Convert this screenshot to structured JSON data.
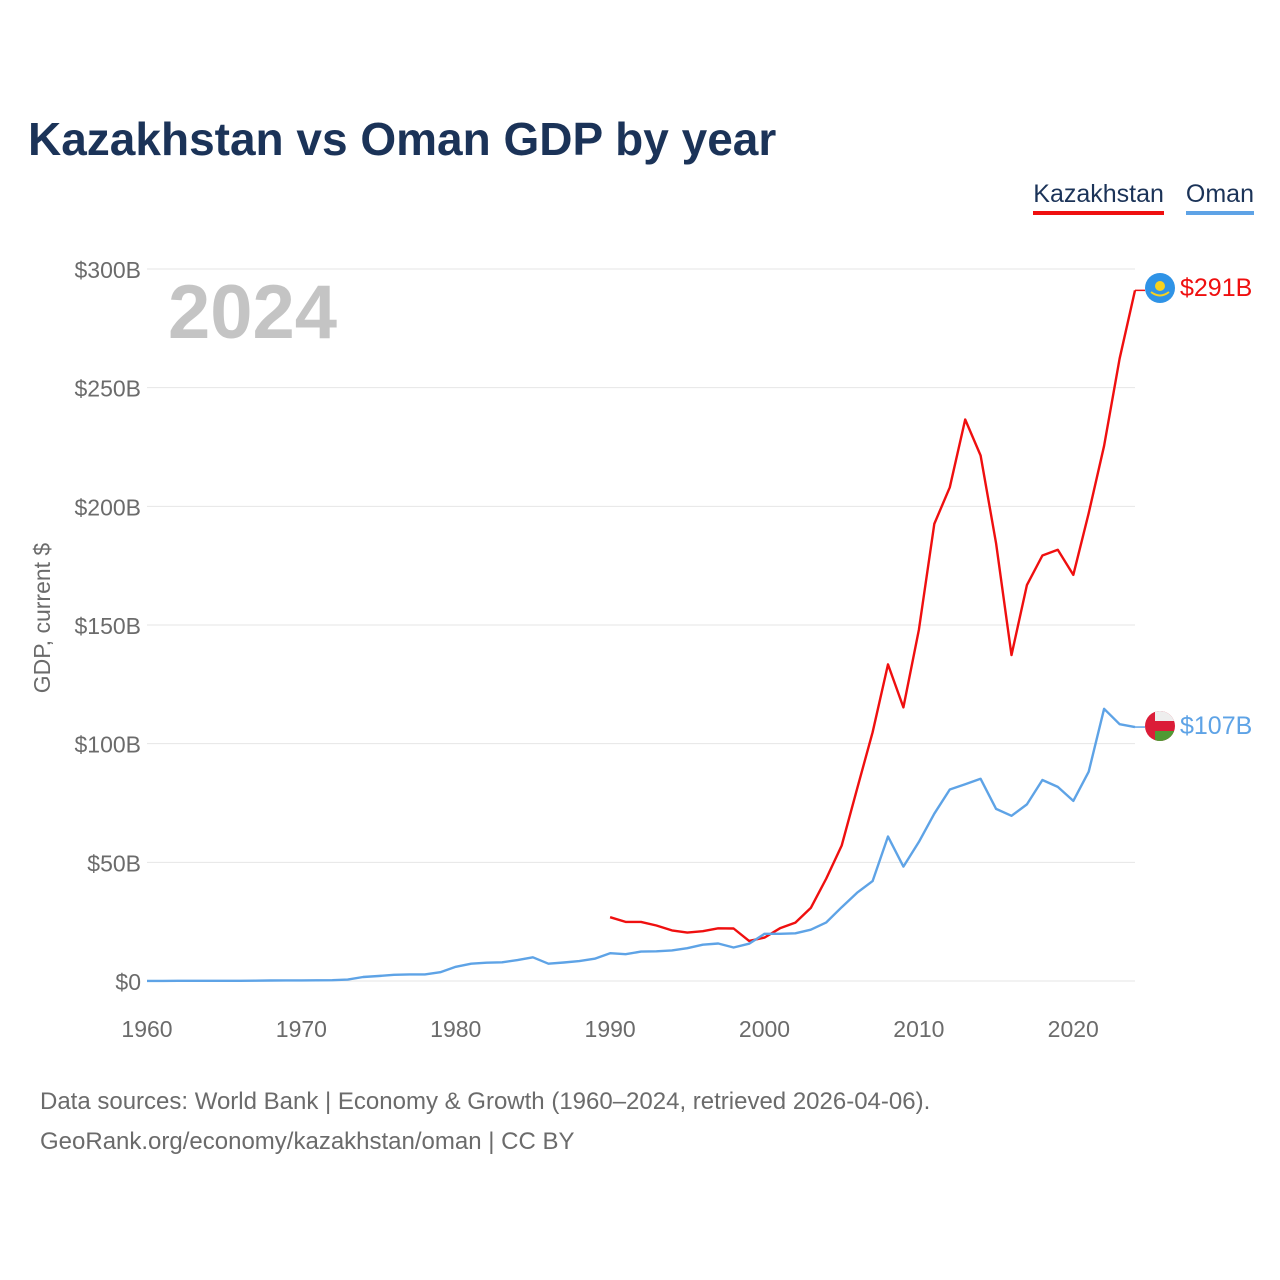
{
  "title": "Kazakhstan vs Oman GDP by year",
  "legend": [
    {
      "label": "Kazakhstan",
      "color": "#ef0f0f"
    },
    {
      "label": "Oman",
      "color": "#5ea3e6"
    }
  ],
  "year_watermark": "2024",
  "footer": {
    "line1": "Data sources: World Bank | Economy & Growth (1960–2024, retrieved 2026-04-06).",
    "line2": "GeoRank.org/economy/kazakhstan/oman | CC BY"
  },
  "chart_data": {
    "type": "line",
    "title": "Kazakhstan vs Oman GDP by year",
    "xlabel": "",
    "ylabel": "GDP, current $",
    "xlim": [
      1960,
      2024
    ],
    "ylim": [
      0,
      300
    ],
    "y_unit": "billions USD",
    "x_ticks": [
      1960,
      1970,
      1980,
      1990,
      2000,
      2010,
      2020
    ],
    "x_tick_labels": [
      "1960",
      "1970",
      "1980",
      "1990",
      "2000",
      "2010",
      "2020"
    ],
    "y_ticks": [
      0,
      50,
      100,
      150,
      200,
      250,
      300
    ],
    "y_tick_labels": [
      "$0",
      "$50B",
      "$100B",
      "$150B",
      "$200B",
      "$250B",
      "$300B"
    ],
    "grid": true,
    "legend_position": "top-right",
    "series": [
      {
        "name": "Kazakhstan",
        "color": "#ef0f0f",
        "end_label": "$291B",
        "x": [
          1990,
          1991,
          1992,
          1993,
          1994,
          1995,
          1996,
          1997,
          1998,
          1999,
          2000,
          2001,
          2002,
          2003,
          2004,
          2005,
          2006,
          2007,
          2008,
          2009,
          2010,
          2011,
          2012,
          2013,
          2014,
          2015,
          2016,
          2017,
          2018,
          2019,
          2020,
          2021,
          2022,
          2023,
          2024
        ],
        "values": [
          26.9,
          24.9,
          24.9,
          23.4,
          21.3,
          20.4,
          21.0,
          22.2,
          22.1,
          16.9,
          18.3,
          22.2,
          24.6,
          30.8,
          43.2,
          57.1,
          81.0,
          104.8,
          133.4,
          115.3,
          148.0,
          192.6,
          208.0,
          236.6,
          221.4,
          184.4,
          137.3,
          166.8,
          179.3,
          181.7,
          171.1,
          197.1,
          225.5,
          262.2,
          291.0
        ]
      },
      {
        "name": "Oman",
        "color": "#5ea3e6",
        "end_label": "$107B",
        "x": [
          1960,
          1961,
          1962,
          1963,
          1964,
          1965,
          1966,
          1967,
          1968,
          1969,
          1970,
          1971,
          1972,
          1973,
          1974,
          1975,
          1976,
          1977,
          1978,
          1979,
          1980,
          1981,
          1982,
          1983,
          1984,
          1985,
          1986,
          1987,
          1988,
          1989,
          1990,
          1991,
          1992,
          1993,
          1994,
          1995,
          1996,
          1997,
          1998,
          1999,
          2000,
          2001,
          2002,
          2003,
          2004,
          2005,
          2006,
          2007,
          2008,
          2009,
          2010,
          2011,
          2012,
          2013,
          2014,
          2015,
          2016,
          2017,
          2018,
          2019,
          2020,
          2021,
          2022,
          2023,
          2024
        ],
        "values": [
          0.05,
          0.06,
          0.07,
          0.08,
          0.08,
          0.09,
          0.1,
          0.11,
          0.2,
          0.25,
          0.26,
          0.3,
          0.35,
          0.6,
          1.7,
          2.1,
          2.6,
          2.8,
          2.8,
          3.7,
          6.0,
          7.3,
          7.7,
          7.9,
          8.8,
          10.0,
          7.3,
          7.8,
          8.4,
          9.4,
          11.7,
          11.3,
          12.4,
          12.5,
          12.9,
          13.8,
          15.3,
          15.8,
          14.1,
          15.7,
          19.9,
          19.9,
          20.1,
          21.6,
          24.7,
          31.1,
          37.2,
          42.1,
          60.9,
          48.2,
          58.6,
          70.5,
          80.7,
          82.9,
          85.2,
          72.5,
          69.6,
          74.4,
          84.7,
          81.8,
          75.9,
          88.2,
          114.7,
          108.2,
          107.0
        ]
      }
    ]
  }
}
